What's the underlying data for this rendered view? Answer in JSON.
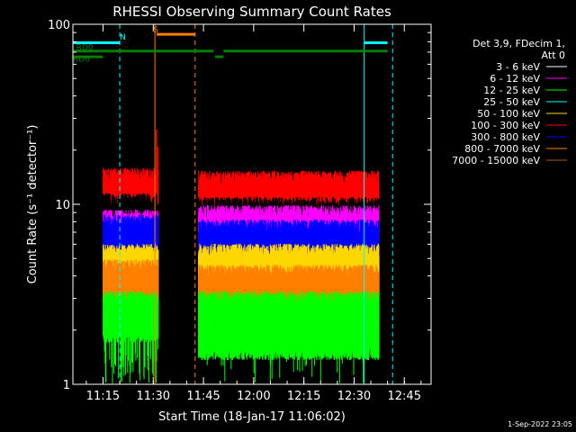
{
  "chart_data": {
    "type": "line",
    "title": "RHESSI Observing Summary Count Rates",
    "xlabel": "Start Time (18-Jan-17 11:06:02)",
    "ylabel": "Count Rate (s⁻¹ detector⁻¹)",
    "y_scale": "log",
    "ylim": [
      1,
      100
    ],
    "xlim_minutes_after_11h": [
      6.0,
      47.0
    ],
    "x_ticks": [
      {
        "label": "11:15",
        "min": 15
      },
      {
        "label": "11:30",
        "min": 30
      },
      {
        "label": "11:45",
        "min": 45
      },
      {
        "label": "12:00",
        "min": 60
      },
      {
        "label": "12:15",
        "min": 75
      },
      {
        "label": "12:30",
        "min": 90
      },
      {
        "label": "12:45",
        "min": 105
      }
    ],
    "y_ticks": [
      {
        "label": "1",
        "value": 1
      },
      {
        "label": "10",
        "value": 10
      },
      {
        "label": "100",
        "value": 100
      }
    ],
    "legend_header": [
      "Det 3,9, FDecim 1,",
      "Att 0"
    ],
    "legend_position": "right",
    "series": [
      {
        "name": "3 - 6 keV",
        "color": "#000000"
      },
      {
        "name": "6 - 12 keV",
        "color": "#ff00ff"
      },
      {
        "name": "12 - 25 keV",
        "color": "#00ff00"
      },
      {
        "name": "25 - 50 keV",
        "color": "#00ffff"
      },
      {
        "name": "50 - 100 keV",
        "color": "#ffd700"
      },
      {
        "name": "100 - 300 keV",
        "color": "#ff0000"
      },
      {
        "name": "300 - 800 keV",
        "color": "#0000ff"
      },
      {
        "name": "800 - 7000 keV",
        "color": "#ff8000"
      },
      {
        "name": "7000 - 15000 keV",
        "color": "#a06000"
      }
    ],
    "data_segments_min": [
      [
        15.0,
        31.5
      ],
      [
        43.5,
        97.5
      ]
    ],
    "band_levels": [
      {
        "series": "100 - 300 keV",
        "seg1": [
          10.5,
          14.5
        ],
        "seg2": [
          9.5,
          14.0
        ]
      },
      {
        "series": "3 - 6 keV",
        "seg1": [
          8.0,
          10.5
        ],
        "seg2": [
          7.5,
          10.0
        ]
      },
      {
        "series": "6 - 12 keV",
        "seg1": [
          6.5,
          8.5
        ],
        "seg2": [
          6.0,
          9.0
        ]
      },
      {
        "series": "300 - 800 keV",
        "seg1": [
          5.0,
          8.0
        ],
        "seg2": [
          4.5,
          7.5
        ]
      },
      {
        "series": "50 - 100 keV",
        "seg1": [
          3.5,
          5.5
        ],
        "seg2": [
          3.5,
          5.5
        ]
      },
      {
        "series": "800 - 7000 keV",
        "seg1": [
          3.0,
          4.5
        ],
        "seg2": [
          3.0,
          4.2
        ]
      },
      {
        "series": "12 - 25 keV",
        "seg1": [
          2.0,
          3.0
        ],
        "seg2": [
          1.6,
          3.0
        ]
      }
    ],
    "spike": {
      "series": "100 - 300 keV",
      "min": 31.0,
      "value": 26
    },
    "annotations": [
      {
        "label": "N",
        "color": "#00ffff",
        "min": 20,
        "level": 82
      },
      {
        "label": "S",
        "color": "#ff8000",
        "min": 30,
        "level": 90
      },
      {
        "label": "RD0",
        "color": "#008000",
        "min": 7,
        "level": 72
      },
      {
        "label": "RD6",
        "color": "#008000",
        "min": 6,
        "level": 62
      }
    ],
    "state_bars": [
      {
        "name": "N",
        "color": "#00ffff",
        "level": 79,
        "ranges": [
          [
            6.0,
            20.0
          ],
          [
            93.0,
            100.0
          ]
        ]
      },
      {
        "name": "S",
        "color": "#ff8000",
        "level": 88,
        "ranges": [
          [
            31.0,
            42.5
          ]
        ]
      },
      {
        "name": "RD0",
        "color": "#008000",
        "level": 71,
        "ranges": [
          [
            6.0,
            15.0
          ],
          [
            15.0,
            48.0
          ],
          [
            51.0,
            100.0
          ]
        ]
      },
      {
        "name": "RD6",
        "color": "#008000",
        "level": 66,
        "ranges": [
          [
            6.0,
            15.0
          ],
          [
            48.5,
            51.0
          ]
        ]
      }
    ],
    "vlines": [
      {
        "min": 20.0,
        "color": "#00ffff",
        "style": "dashed"
      },
      {
        "min": 30.5,
        "color": "#ff8000",
        "style": "solid"
      },
      {
        "min": 42.5,
        "color": "#ff8000",
        "style": "dashed"
      },
      {
        "min": 93.0,
        "color": "#00ffff",
        "style": "solid"
      },
      {
        "min": 101.5,
        "color": "#00ffff",
        "style": "dashed"
      }
    ],
    "grid": false
  },
  "footer": {
    "timestamp": "1-Sep-2022 23:05"
  }
}
